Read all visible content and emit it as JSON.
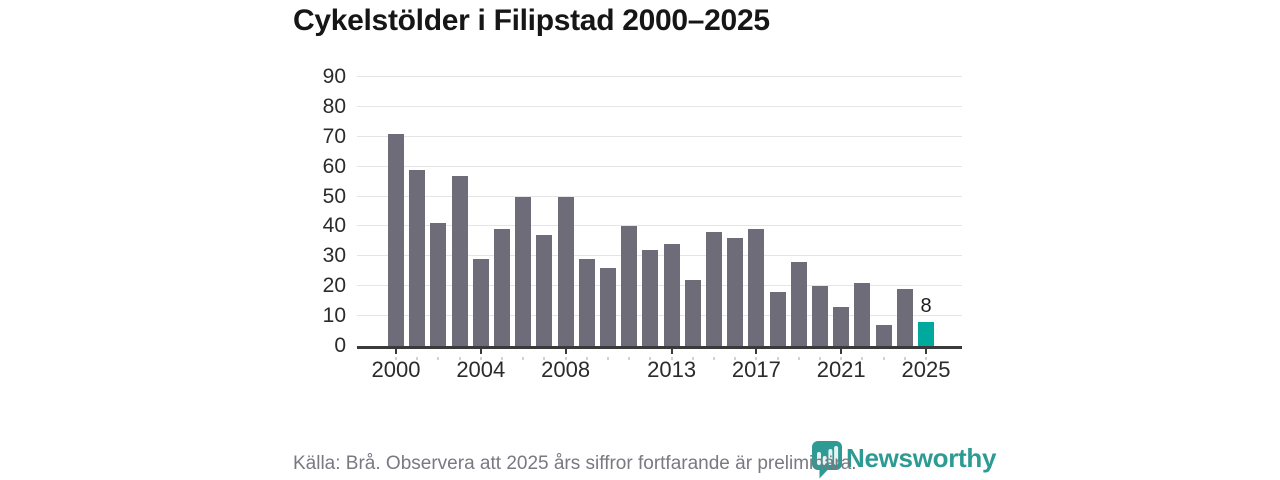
{
  "title": "Cykelstölder i Filipstad 2000–2025",
  "chart_data": {
    "type": "bar",
    "title": "Cykelstölder i Filipstad 2000–2025",
    "categories": [
      "2000",
      "2001",
      "2002",
      "2003",
      "2004",
      "2005",
      "2006",
      "2007",
      "2008",
      "2009",
      "2010",
      "2011",
      "2012",
      "2013",
      "2014",
      "2015",
      "2016",
      "2017",
      "2018",
      "2019",
      "2020",
      "2021",
      "2022",
      "2023",
      "2024",
      "2025"
    ],
    "values": [
      71,
      59,
      41,
      57,
      29,
      39,
      50,
      37,
      50,
      29,
      26,
      40,
      32,
      34,
      22,
      38,
      36,
      39,
      18,
      28,
      20,
      13,
      21,
      7,
      19,
      8
    ],
    "xlabel": "",
    "ylabel": "",
    "ylim": [
      0,
      90
    ],
    "ytick_step": 10,
    "yticks": [
      0,
      10,
      20,
      30,
      40,
      50,
      60,
      70,
      80,
      90
    ],
    "xtick_labels": [
      "2000",
      "2004",
      "2008",
      "2013",
      "2017",
      "2021",
      "2025"
    ],
    "grid": true,
    "legend_position": "none",
    "bar_color": "#6e6c78",
    "axis_color": "#3a3a3a",
    "highlight": {
      "category": "2025",
      "index": 25,
      "color": "#00a89d",
      "label": "8"
    }
  },
  "footer": {
    "source_note": "Källa: Brå. Observera att 2025 års siffror fortfarande är preliminära."
  },
  "branding": {
    "name": "Newsworthy",
    "color": "#2d9b93",
    "icon": "bar-chart-speech-bubble-icon"
  }
}
